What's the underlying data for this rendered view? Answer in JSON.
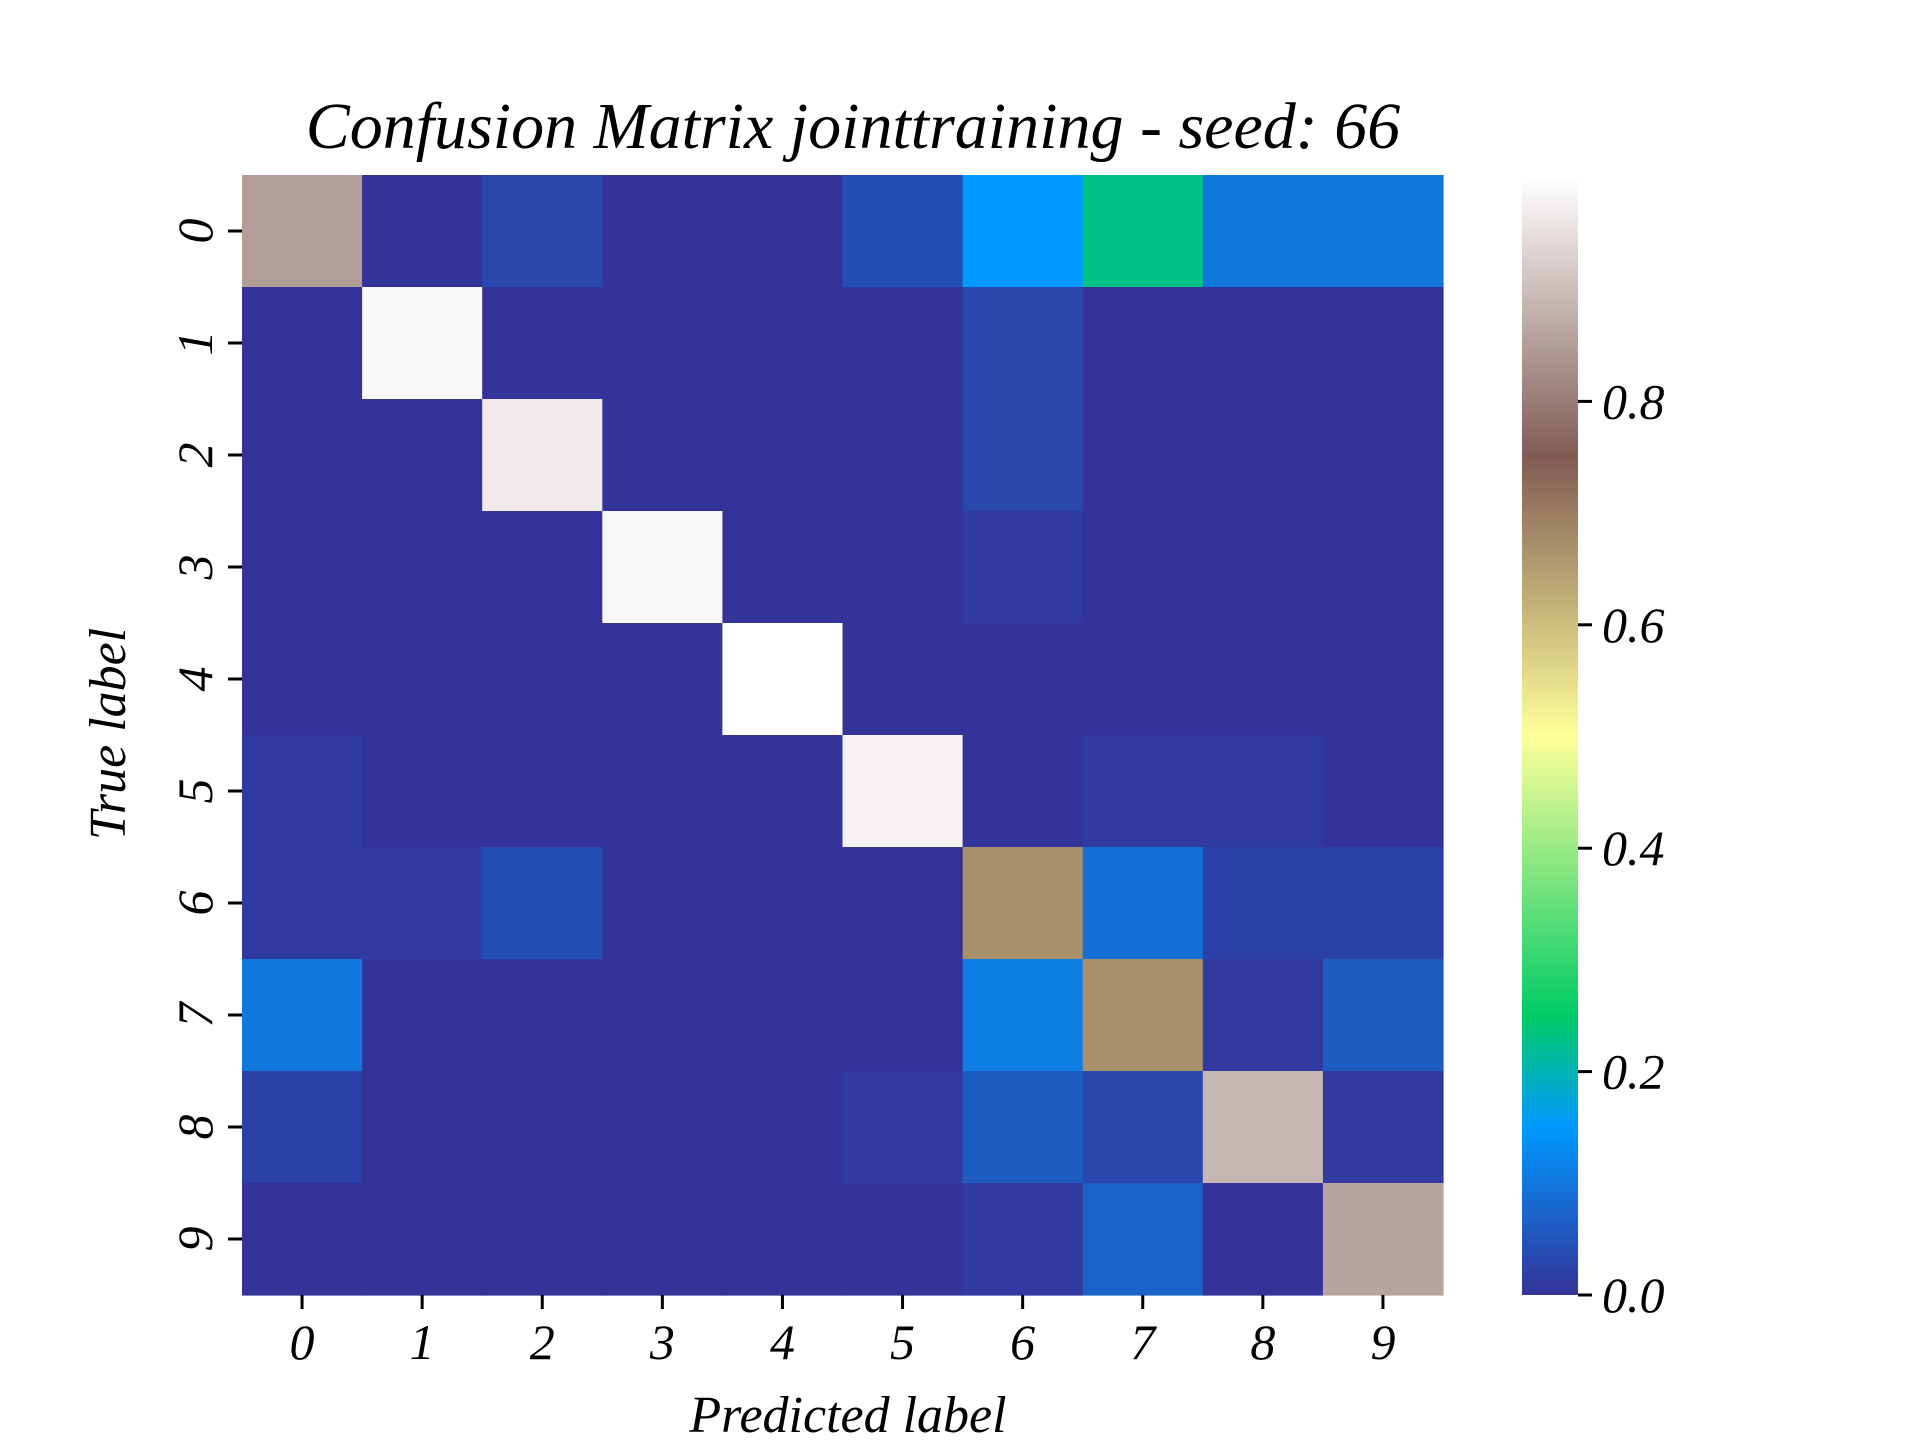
{
  "chart_data": {
    "type": "heatmap",
    "title": "Confusion Matrix jointtraining - seed: 66",
    "xlabel": "Predicted label",
    "ylabel": "True label",
    "x_categories": [
      "0",
      "1",
      "2",
      "3",
      "4",
      "5",
      "6",
      "7",
      "8",
      "9"
    ],
    "y_categories": [
      "0",
      "1",
      "2",
      "3",
      "4",
      "5",
      "6",
      "7",
      "8",
      "9"
    ],
    "values": [
      [
        0.85,
        0.0,
        0.03,
        0.0,
        0.0,
        0.04,
        0.15,
        0.23,
        0.1,
        0.1
      ],
      [
        0.0,
        0.99,
        0.0,
        0.0,
        0.0,
        0.0,
        0.03,
        0.0,
        0.0,
        0.0
      ],
      [
        0.0,
        0.0,
        0.97,
        0.0,
        0.0,
        0.0,
        0.03,
        0.0,
        0.0,
        0.0
      ],
      [
        0.0,
        0.0,
        0.0,
        0.99,
        0.0,
        0.0,
        0.01,
        0.0,
        0.0,
        0.0
      ],
      [
        0.0,
        0.0,
        0.0,
        0.0,
        1.0,
        0.0,
        0.0,
        0.0,
        0.0,
        0.0
      ],
      [
        0.01,
        0.0,
        0.0,
        0.0,
        0.0,
        0.98,
        0.0,
        0.01,
        0.01,
        0.0
      ],
      [
        0.01,
        0.01,
        0.04,
        0.0,
        0.0,
        0.0,
        0.67,
        0.09,
        0.02,
        0.02
      ],
      [
        0.1,
        0.0,
        0.0,
        0.0,
        0.0,
        0.0,
        0.11,
        0.67,
        0.01,
        0.06
      ],
      [
        0.02,
        0.0,
        0.0,
        0.0,
        0.0,
        0.01,
        0.06,
        0.03,
        0.89,
        0.01
      ],
      [
        0.0,
        0.0,
        0.0,
        0.0,
        0.0,
        0.0,
        0.01,
        0.07,
        0.0,
        0.86
      ]
    ],
    "colormap": "terrain",
    "colorbar": {
      "range": [
        0.0,
        1.0
      ],
      "ticks": [
        0.0,
        0.2,
        0.4,
        0.6,
        0.8
      ],
      "tick_labels": [
        "0.0",
        "0.2",
        "0.4",
        "0.6",
        "0.8"
      ]
    },
    "grid": false,
    "legend": "none"
  }
}
